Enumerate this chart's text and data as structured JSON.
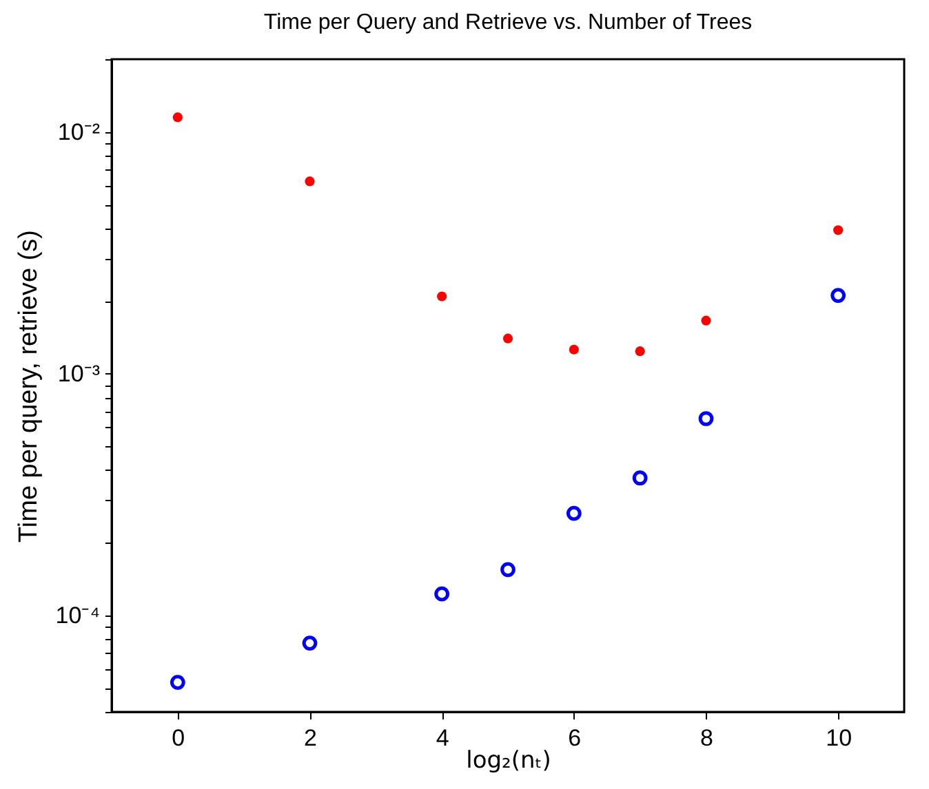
{
  "chart_data": {
    "type": "scatter",
    "title": "Time per Query and Retrieve vs. Number of Trees",
    "xlabel": "log₂(nₜ)",
    "ylabel": "Time per query, retrieve (s)",
    "x": [
      0,
      2,
      4,
      5,
      6,
      7,
      8,
      10
    ],
    "series": [
      {
        "color": "#ff0000",
        "marker": "circle",
        "values": [
          0.0115,
          0.00625,
          0.00209,
          0.0014,
          0.00126,
          0.00124,
          0.00166,
          0.00393
        ]
      },
      {
        "color": "#0000ff",
        "marker": "circle",
        "values": [
          5.3e-05,
          7.7e-05,
          0.000123,
          0.000155,
          0.000265,
          0.000371,
          0.000653,
          0.00211
        ]
      }
    ],
    "log": true,
    "xlim": [
      -1,
      11
    ],
    "ylim": [
      4e-05,
      0.02
    ],
    "xticks": [
      0,
      2,
      4,
      6,
      8,
      10
    ],
    "yticks": [
      {
        "value": 4e-05,
        "label": null
      },
      {
        "value": 5e-05,
        "label": null
      },
      {
        "value": 6e-05,
        "label": null
      },
      {
        "value": 7e-05,
        "label": null
      },
      {
        "value": 8e-05,
        "label": null
      },
      {
        "value": 9e-05,
        "label": null
      },
      {
        "value": 0.0001,
        "label": "10⁻⁴"
      },
      {
        "value": 0.0002,
        "label": null
      },
      {
        "value": 0.0003,
        "label": null
      },
      {
        "value": 0.0004,
        "label": null
      },
      {
        "value": 0.0005,
        "label": null
      },
      {
        "value": 0.0006,
        "label": null
      },
      {
        "value": 0.0007,
        "label": null
      },
      {
        "value": 0.0008,
        "label": null
      },
      {
        "value": 0.0009,
        "label": null
      },
      {
        "value": 0.001,
        "label": "10⁻³"
      },
      {
        "value": 0.002,
        "label": null
      },
      {
        "value": 0.003,
        "label": null
      },
      {
        "value": 0.004,
        "label": null
      },
      {
        "value": 0.005,
        "label": null
      },
      {
        "value": 0.006,
        "label": null
      },
      {
        "value": 0.007,
        "label": null
      },
      {
        "value": 0.008,
        "label": null
      },
      {
        "value": 0.009,
        "label": null
      },
      {
        "value": 0.01,
        "label": "10⁻²"
      },
      {
        "value": 0.02,
        "label": null
      }
    ],
    "grid": false
  }
}
